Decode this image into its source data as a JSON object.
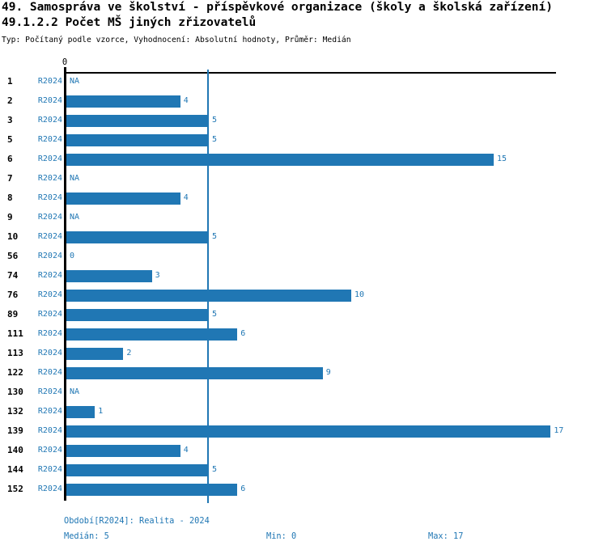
{
  "header": {
    "title": "49. Samospráva ve školství - příspěvkové organizace (školy a školská zařízení)",
    "subtitle": "49.1.2.2 Počet MŠ jiných zřizovatelů",
    "meta": "Typ: Počítaný podle vzorce, Vyhodnocení: Absolutní hodnoty, Průměr: Medián"
  },
  "chart_data": {
    "type": "bar",
    "orientation": "horizontal",
    "categories": [
      "1",
      "2",
      "3",
      "5",
      "6",
      "7",
      "8",
      "9",
      "10",
      "56",
      "74",
      "76",
      "89",
      "111",
      "113",
      "122",
      "130",
      "132",
      "139",
      "140",
      "144",
      "152"
    ],
    "series": [
      {
        "name": "R2024",
        "values": [
          null,
          4,
          5,
          5,
          15,
          null,
          4,
          null,
          5,
          0,
          3,
          10,
          5,
          6,
          2,
          9,
          null,
          1,
          17,
          4,
          5,
          6
        ]
      }
    ],
    "na_text": "NA",
    "x_axis_zero_label": "0",
    "xlim": [
      0,
      17.2
    ],
    "median": 5,
    "min": 0,
    "max": 17,
    "bar_color": "#2077b4",
    "median_line_color": "#2077b4",
    "grid": false,
    "legend_position": "none"
  },
  "footer": {
    "period_info": "Období[R2024]: Realita - 2024",
    "median_label": "Medián: 5",
    "min_label": "Min: 0",
    "max_label": "Max: 17"
  }
}
